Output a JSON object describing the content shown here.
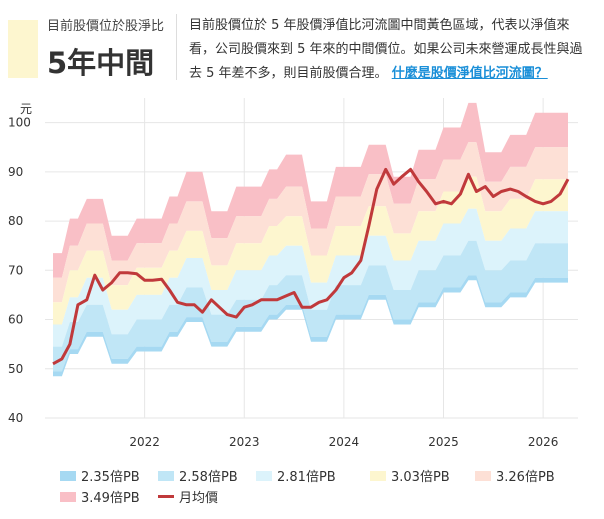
{
  "header": {
    "label": "目前股價位於股淨比",
    "value": "5年中間",
    "description": "目前股價位於 5 年股價淨值比河流圖中間黃色區域，代表以淨值來看，公司股價來到 5 年來的中間價位。如果公司未來營運成長性與過去 5 年差不多，則目前股價合理。",
    "link": "什麼是股價淨值比河流圖？"
  },
  "colors": {
    "band1": "#a6d9f2",
    "band2": "#c0e6f6",
    "band3": "#dcf3fb",
    "band4": "#fdf6cf",
    "band5": "#fde0d6",
    "band6": "#f9bfc6",
    "price": "#c0393b"
  },
  "chart_data": {
    "type": "area",
    "ylabel": "元",
    "ylim": [
      40,
      105
    ],
    "yticks": [
      40,
      50,
      60,
      70,
      80,
      90,
      100
    ],
    "xlim": [
      2021.0,
      2026.35
    ],
    "xticks": [
      {
        "label": "2022",
        "value": 2022
      },
      {
        "label": "2023",
        "value": 2023
      },
      {
        "label": "2024",
        "value": 2024
      },
      {
        "label": "2025",
        "value": 2025
      },
      {
        "label": "2026",
        "value": 2026
      }
    ],
    "x": [
      2021.08,
      2021.17,
      2021.25,
      2021.33,
      2021.42,
      2021.5,
      2021.58,
      2021.67,
      2021.75,
      2021.83,
      2021.92,
      2022.0,
      2022.08,
      2022.17,
      2022.25,
      2022.33,
      2022.42,
      2022.5,
      2022.58,
      2022.67,
      2022.75,
      2022.83,
      2022.92,
      2023.0,
      2023.08,
      2023.17,
      2023.25,
      2023.33,
      2023.42,
      2023.5,
      2023.58,
      2023.67,
      2023.75,
      2023.83,
      2023.92,
      2024.0,
      2024.08,
      2024.17,
      2024.25,
      2024.33,
      2024.42,
      2024.5,
      2024.58,
      2024.67,
      2024.75,
      2024.83,
      2024.92,
      2025.0,
      2025.08,
      2025.17,
      2025.25,
      2025.33,
      2025.42,
      2025.5,
      2025.58,
      2025.67,
      2025.75,
      2025.83,
      2025.92,
      2026.0,
      2026.08,
      2026.17,
      2026.25
    ],
    "series": [
      {
        "name": "2.35倍PB",
        "values": [
          49.5,
          49.5,
          54,
          54,
          57.5,
          57.5,
          57.5,
          52,
          52,
          52,
          54.5,
          54.5,
          54.5,
          54.5,
          57.5,
          57.5,
          60.5,
          60.5,
          60.5,
          55.5,
          55.5,
          55.5,
          58.5,
          58.5,
          58.5,
          58.5,
          61,
          61,
          63,
          63,
          63,
          56.5,
          56.5,
          56.5,
          61,
          61,
          61,
          61,
          65,
          65,
          65,
          60,
          60,
          60,
          63.5,
          63.5,
          63.5,
          66.5,
          66.5,
          66.5,
          69,
          69,
          63.5,
          63.5,
          63.5,
          65.5,
          65.5,
          65.5,
          68.5,
          68.5,
          68.5,
          68.5,
          68.5
        ]
      },
      {
        "name": "2.58倍PB",
        "values": [
          54.5,
          54.5,
          59.5,
          59.5,
          63,
          63,
          63,
          57,
          57,
          57,
          60,
          60,
          60,
          60,
          63,
          63,
          66.5,
          66.5,
          66.5,
          61,
          61,
          61,
          64,
          64,
          64,
          64,
          67,
          67,
          69,
          69,
          69,
          62,
          62,
          62,
          67,
          67,
          67,
          67,
          71,
          71,
          71,
          66,
          66,
          66,
          70,
          70,
          70,
          73,
          73,
          73,
          76,
          76,
          70,
          70,
          70,
          72,
          72,
          72,
          75.5,
          75.5,
          75.5,
          75.5,
          75.5
        ]
      },
      {
        "name": "2.81倍PB",
        "values": [
          59,
          59,
          64.5,
          64.5,
          68.5,
          68.5,
          68.5,
          62,
          62,
          62,
          65,
          65,
          65,
          65,
          68.5,
          68.5,
          72.5,
          72.5,
          72.5,
          66,
          66,
          66,
          70,
          70,
          70,
          70,
          73,
          73,
          75,
          75,
          75,
          67.5,
          67.5,
          67.5,
          73,
          73,
          73,
          73,
          77,
          77,
          77,
          72,
          72,
          72,
          76,
          76,
          76,
          79.5,
          79.5,
          79.5,
          82.5,
          82.5,
          76,
          76,
          76,
          78.5,
          78.5,
          78.5,
          82,
          82,
          82,
          82,
          82
        ]
      },
      {
        "name": "3.03倍PB",
        "values": [
          63.5,
          63.5,
          70,
          70,
          74,
          74,
          74,
          67,
          67,
          67,
          70.5,
          70.5,
          70.5,
          70.5,
          74,
          74,
          78,
          78,
          78,
          71,
          71,
          71,
          75.5,
          75.5,
          75.5,
          75.5,
          79,
          79,
          81,
          81,
          81,
          73,
          73,
          73,
          79,
          79,
          79,
          79,
          83,
          83,
          83,
          77.5,
          77.5,
          77.5,
          82,
          82,
          82,
          86,
          86,
          86,
          89,
          89,
          82,
          82,
          82,
          84.5,
          84.5,
          84.5,
          88.5,
          88.5,
          88.5,
          88.5,
          88.5
        ]
      },
      {
        "name": "3.26倍PB",
        "values": [
          68.5,
          68.5,
          75,
          75,
          79.5,
          79.5,
          79.5,
          72,
          72,
          72,
          75.5,
          75.5,
          75.5,
          75.5,
          79.5,
          79.5,
          84,
          84,
          84,
          76.5,
          76.5,
          76.5,
          81,
          81,
          81,
          81,
          84.5,
          84.5,
          87,
          87,
          87,
          78.5,
          78.5,
          78.5,
          85,
          85,
          85,
          85,
          89.5,
          89.5,
          89.5,
          83.5,
          83.5,
          83.5,
          88.5,
          88.5,
          88.5,
          92.5,
          92.5,
          92.5,
          96,
          96,
          88,
          88,
          88,
          91,
          91,
          91,
          95,
          95,
          95,
          95,
          95
        ]
      },
      {
        "name": "3.49倍PB",
        "values": [
          73.5,
          73.5,
          80.5,
          80.5,
          84.5,
          84.5,
          84.5,
          77,
          77,
          77,
          80.5,
          80.5,
          80.5,
          80.5,
          85,
          85,
          90,
          90,
          90,
          82,
          82,
          82,
          87,
          87,
          87,
          87,
          90.5,
          90.5,
          93.5,
          93.5,
          93.5,
          84,
          84,
          84,
          91,
          91,
          91,
          91,
          95.5,
          95.5,
          95.5,
          89,
          89,
          89,
          94.5,
          94.5,
          94.5,
          99,
          99,
          99,
          104,
          104,
          94,
          94,
          94,
          97.5,
          97.5,
          97.5,
          102,
          102,
          102,
          102,
          102
        ]
      },
      {
        "name": "月均價",
        "values": [
          51,
          52,
          55,
          63,
          64,
          69,
          66,
          67.5,
          69.5,
          69.5,
          69.3,
          68,
          68,
          68.2,
          66,
          63.5,
          63,
          63,
          61.5,
          64,
          62.5,
          61,
          60.5,
          62.5,
          63,
          64,
          64,
          64,
          64.8,
          65.5,
          62.5,
          62.5,
          63.5,
          64,
          66,
          68.5,
          69.5,
          72,
          79,
          86.5,
          90.5,
          87.5,
          89,
          90.5,
          88,
          86,
          83.5,
          84,
          83.5,
          85.5,
          89.5,
          86,
          87,
          85,
          86,
          86.5,
          86,
          85,
          84,
          83.5,
          84,
          85.5,
          88.5
        ]
      }
    ]
  },
  "legend": [
    {
      "label": "2.35倍PB",
      "color": "#a6d9f2",
      "kind": "area"
    },
    {
      "label": "2.58倍PB",
      "color": "#c0e6f6",
      "kind": "area"
    },
    {
      "label": "2.81倍PB",
      "color": "#dcf3fb",
      "kind": "area"
    },
    {
      "label": "3.03倍PB",
      "color": "#fdf6cf",
      "kind": "area"
    },
    {
      "label": "3.26倍PB",
      "color": "#fde0d6",
      "kind": "area"
    },
    {
      "label": "3.49倍PB",
      "color": "#f9bfc6",
      "kind": "area"
    },
    {
      "label": "月均價",
      "color": "#c0393b",
      "kind": "line"
    }
  ]
}
